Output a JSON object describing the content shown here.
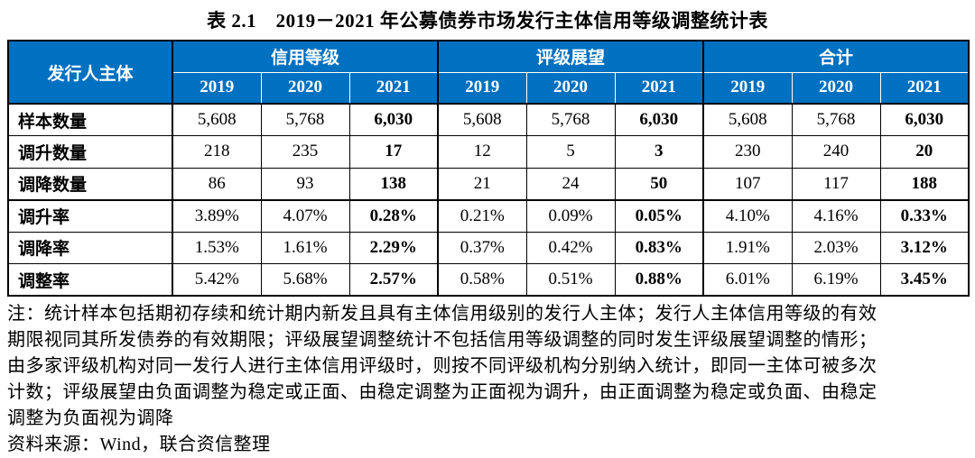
{
  "title": "表 2.1　2019－2021 年公募债券市场发行主体信用等级调整统计表",
  "table": {
    "corner_header": "发行人主体",
    "groups": [
      {
        "label": "信用等级",
        "years": [
          "2019",
          "2020",
          "2021"
        ]
      },
      {
        "label": "评级展望",
        "years": [
          "2019",
          "2020",
          "2021"
        ]
      },
      {
        "label": "合计",
        "years": [
          "2019",
          "2020",
          "2021"
        ]
      }
    ],
    "rows": [
      {
        "label": "样本数量",
        "values": [
          "5,608",
          "5,768",
          "6,030",
          "5,608",
          "5,768",
          "6,030",
          "5,608",
          "5,768",
          "6,030"
        ]
      },
      {
        "label": "调升数量",
        "values": [
          "218",
          "235",
          "17",
          "12",
          "5",
          "3",
          "230",
          "240",
          "20"
        ]
      },
      {
        "label": "调降数量",
        "values": [
          "86",
          "93",
          "138",
          "21",
          "24",
          "50",
          "107",
          "117",
          "188"
        ]
      },
      {
        "label": "调升率",
        "values": [
          "3.89%",
          "4.07%",
          "0.28%",
          "0.21%",
          "0.09%",
          "0.05%",
          "4.10%",
          "4.16%",
          "0.33%"
        ]
      },
      {
        "label": "调降率",
        "values": [
          "1.53%",
          "1.61%",
          "2.29%",
          "0.37%",
          "0.42%",
          "0.83%",
          "1.91%",
          "2.03%",
          "3.12%"
        ]
      },
      {
        "label": "调整率",
        "values": [
          "5.42%",
          "5.68%",
          "2.57%",
          "0.58%",
          "0.51%",
          "0.88%",
          "6.01%",
          "6.19%",
          "3.45%"
        ]
      }
    ],
    "bold_year": "2021"
  },
  "notes": {
    "lines": [
      "注：统计样本包括期初存续和统计期内新发且具有主体信用级别的发行人主体；发行人主体信用等级的有效",
      "期限视同其所发债券的有效期限；评级展望调整统计不包括信用等级调整的同时发生评级展望调整的情形；",
      "由多家评级机构对同一发行人进行主体信用评级时，则按不同评级机构分别纳入统计，即同一主体可被多次",
      "计数；评级展望由负面调整为稳定或正面、由稳定调整为正面视为调升，由正面调整为稳定或负面、由稳定",
      "调整为负面视为调降"
    ]
  },
  "source": "资料来源：Wind，联合资信整理",
  "colors": {
    "header_bg": "#0070C0",
    "header_text": "#FFFFFF",
    "border": "#000000",
    "body_text": "#000000"
  }
}
